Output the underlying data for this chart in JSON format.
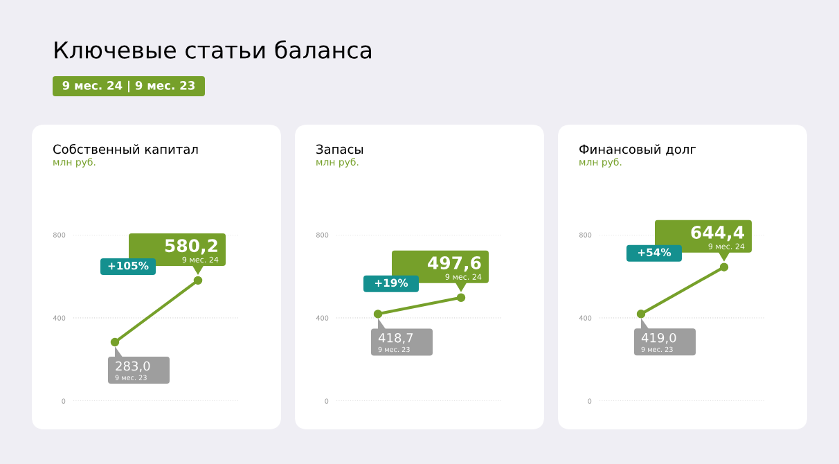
{
  "chart_data": [
    {
      "type": "other",
      "title": "Ключевые статьи баланса",
      "annotations": [
        "9 мес. 24 | 9 мес. 23"
      ]
    },
    {
      "type": "line",
      "title": "Собственный капитал",
      "subtitle": "млн руб.",
      "categories": [
        "9 мес. 23",
        "9 мес. 24"
      ],
      "series": [
        {
          "color": "#76a02a",
          "values": [
            283.0,
            580.2
          ],
          "value_labels": [
            "283,0",
            "580,2"
          ]
        }
      ],
      "ylim": [
        0,
        800
      ],
      "yticks": [
        0,
        400,
        800
      ],
      "grid": "y",
      "marker": "circle",
      "annotations": [
        "+105%"
      ]
    },
    {
      "type": "line",
      "title": "Запасы",
      "subtitle": "млн руб.",
      "categories": [
        "9 мес. 23",
        "9 мес. 24"
      ],
      "series": [
        {
          "color": "#76a02a",
          "values": [
            418.7,
            497.6
          ],
          "value_labels": [
            "418,7",
            "497,6"
          ]
        }
      ],
      "ylim": [
        0,
        800
      ],
      "yticks": [
        0,
        400,
        800
      ],
      "grid": "y",
      "marker": "circle",
      "annotations": [
        "+19%"
      ]
    },
    {
      "type": "line",
      "title": "Финансовый долг",
      "subtitle": "млн руб.",
      "categories": [
        "9 мес. 23",
        "9 мес. 24"
      ],
      "series": [
        {
          "color": "#76a02a",
          "values": [
            419.0,
            644.4
          ],
          "value_labels": [
            "419,0",
            "644,4"
          ]
        }
      ],
      "ylim": [
        0,
        800
      ],
      "yticks": [
        0,
        400,
        800
      ],
      "grid": "y",
      "marker": "circle",
      "annotations": [
        "+54%"
      ]
    }
  ]
}
